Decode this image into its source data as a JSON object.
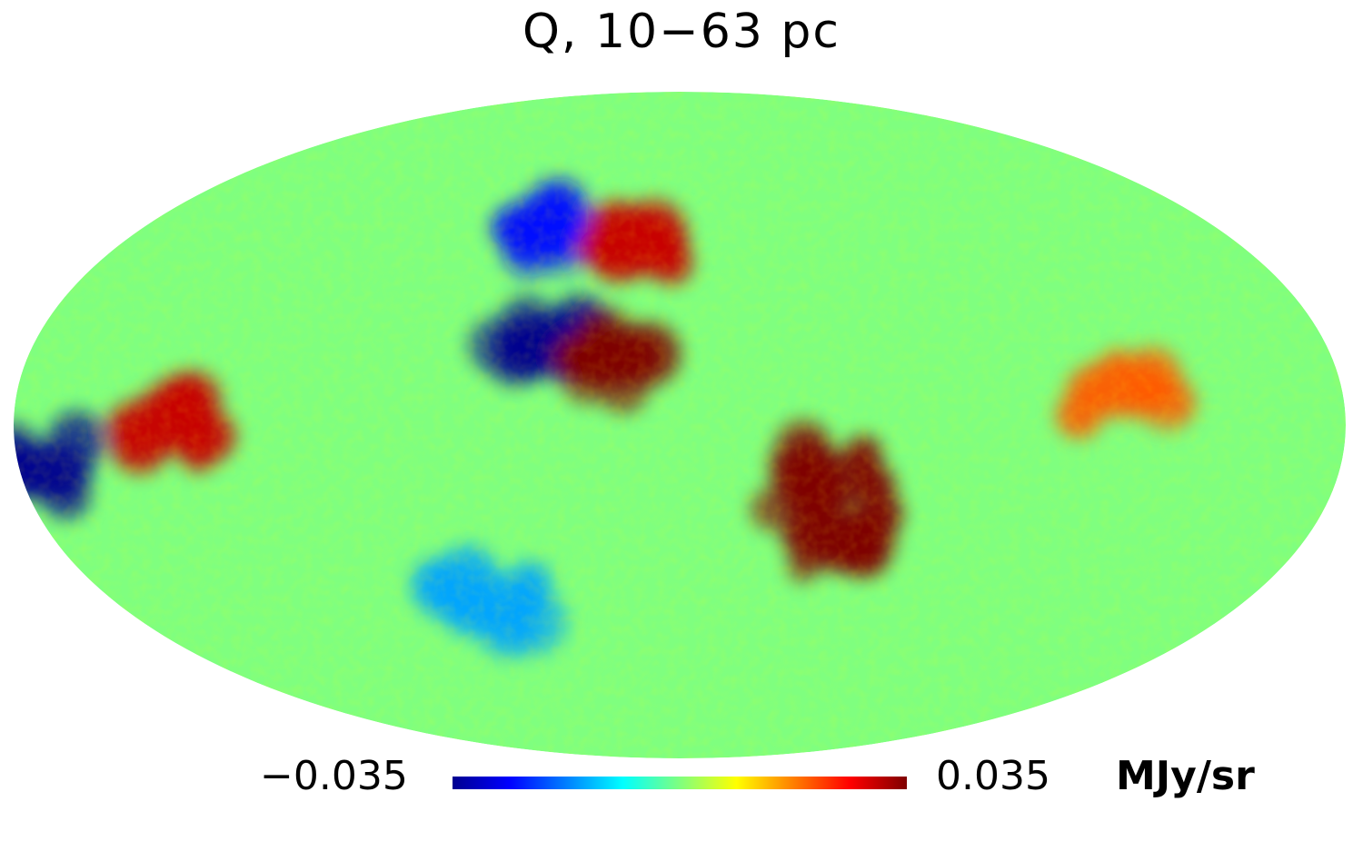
{
  "chart_data": {
    "type": "heatmap",
    "projection": "mollweide",
    "title": "Q, 10−63 pc",
    "colorbar": {
      "min": -0.035,
      "max": 0.035,
      "min_label": "−0.035",
      "max_label": "0.035",
      "unit": "MJy/sr",
      "colormap": "jet",
      "colors": [
        "#00008f",
        "#0000ff",
        "#007fff",
        "#00ffff",
        "#7fff7f",
        "#ffff00",
        "#ff7f00",
        "#ff0000",
        "#7f0000"
      ]
    },
    "background_value": 0.0,
    "features": [
      {
        "name": "blue-cluster-upper-center",
        "lon": 37,
        "lat": 18,
        "value": -0.035
      },
      {
        "name": "blue-streak-upper",
        "lon": 45,
        "lat": 45,
        "value": -0.025
      },
      {
        "name": "red-band-upper-center",
        "lon": 15,
        "lat": 40,
        "value": 0.03
      },
      {
        "name": "red-clump-upper-center",
        "lon": 20,
        "lat": 15,
        "value": 0.035
      },
      {
        "name": "red-band-lower-right",
        "lon": -45,
        "lat": -25,
        "value": 0.035
      },
      {
        "name": "red-clump-lower-right",
        "lon": -40,
        "lat": -12,
        "value": 0.035
      },
      {
        "name": "orange-region-left",
        "lon": 140,
        "lat": 0,
        "value": 0.03
      },
      {
        "name": "blue-spot-left-edge",
        "lon": 175,
        "lat": -10,
        "value": -0.035
      },
      {
        "name": "cyan-band-lower-center",
        "lon": 60,
        "lat": -40,
        "value": -0.015
      },
      {
        "name": "yellow-patch-right",
        "lon": -120,
        "lat": 8,
        "value": 0.02
      }
    ]
  }
}
